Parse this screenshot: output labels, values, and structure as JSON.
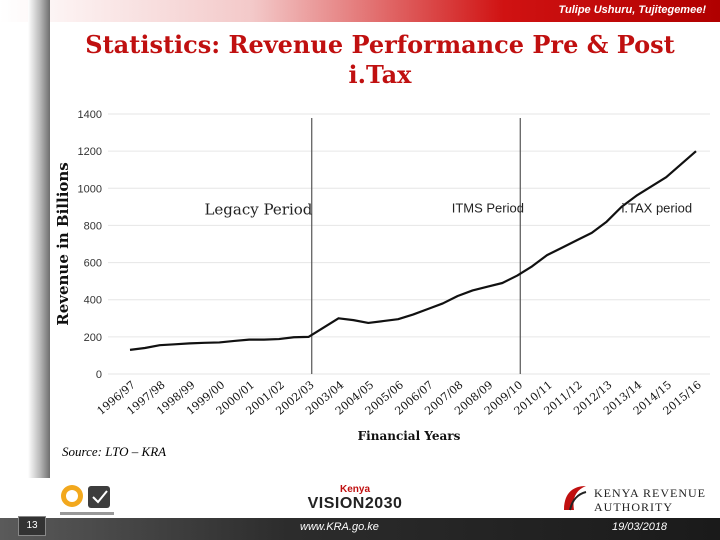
{
  "header": {
    "slogan": "Tulipe Ushuru, Tujitegemee!"
  },
  "title": {
    "line1": "Statistics: Revenue Performance Pre & Post",
    "line2": "i.Tax"
  },
  "source": "Source: LTO – KRA",
  "footer": {
    "page_number": "13",
    "website": "www.KRA.go.ke",
    "date": "19/03/2018",
    "vision_prefix": "Kenya",
    "vision_text": "VISION2030",
    "org_line1": "KENYA REVENUE",
    "org_line2": "AUTHORITY"
  },
  "colors": {
    "brand_red": "#c01010",
    "line": "#111111"
  },
  "chart_data": {
    "type": "line",
    "xlabel": "Financial Years",
    "ylabel": "Revenue in Billions",
    "ylim": [
      0,
      1400
    ],
    "yticks": [
      0,
      200,
      400,
      600,
      800,
      1000,
      1200,
      1400
    ],
    "grid": true,
    "categories": [
      "1996/97",
      "1997/98",
      "1998/99",
      "1999/00",
      "2000/01",
      "2001/02",
      "2002/03",
      "2003/04",
      "2004/05",
      "2005/06",
      "2006/07",
      "2007/08",
      "2008/09",
      "2009/10",
      "2010/11",
      "2011/12",
      "2012/13",
      "2013/14",
      "2014/15",
      "2015/16"
    ],
    "x": [
      0,
      0.5,
      1,
      1.5,
      2,
      2.5,
      3,
      3.5,
      4,
      4.5,
      5,
      5.5,
      6,
      6.5,
      7,
      7.5,
      8,
      8.5,
      9,
      9.5,
      10,
      10.5,
      11,
      11.5,
      12,
      12.5,
      13,
      13.5,
      14,
      14.5,
      15,
      15.5,
      16,
      16.5,
      17,
      17.5,
      18,
      18.5,
      19
    ],
    "values": [
      130,
      140,
      155,
      160,
      165,
      168,
      170,
      178,
      185,
      185,
      188,
      198,
      200,
      250,
      300,
      290,
      275,
      285,
      295,
      320,
      350,
      380,
      420,
      450,
      470,
      490,
      530,
      580,
      640,
      680,
      720,
      760,
      820,
      900,
      960,
      1010,
      1060,
      1130,
      1200
    ],
    "dividers": [
      6,
      13
    ],
    "annotations": [
      {
        "text": "Legacy Period",
        "x": 2.5,
        "y": 880
      },
      {
        "text": "ITMS Period",
        "x": 10.8,
        "y": 890
      },
      {
        "text": "i.TAX period",
        "x": 16.5,
        "y": 890
      }
    ]
  }
}
